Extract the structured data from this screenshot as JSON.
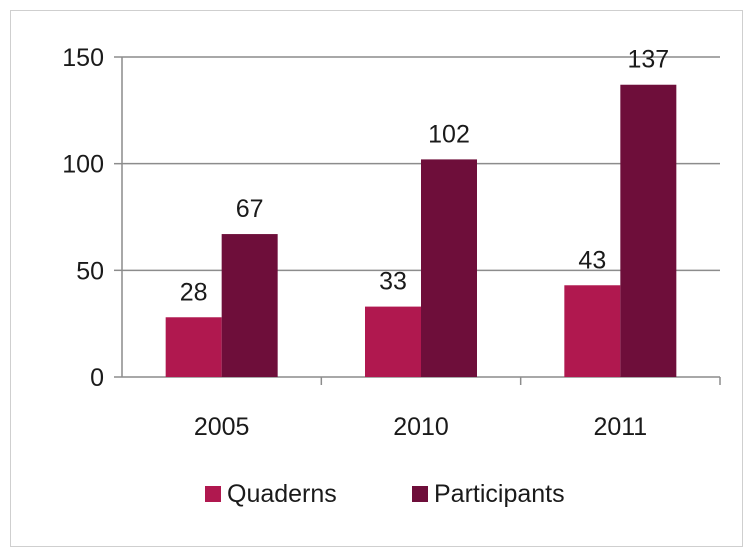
{
  "chart_data": {
    "type": "bar",
    "categories": [
      "2005",
      "2010",
      "2011"
    ],
    "series": [
      {
        "name": "Quaderns",
        "values": [
          28,
          33,
          43
        ],
        "color": "#b0184f"
      },
      {
        "name": "Participants",
        "values": [
          67,
          102,
          137
        ],
        "color": "#6e0e3a"
      }
    ],
    "ylim": [
      0,
      150
    ],
    "yticks": [
      0,
      50,
      100,
      150
    ],
    "ytick_labels": [
      "0",
      "50",
      "100",
      "150"
    ],
    "grid": true,
    "legend_position": "bottom",
    "data_labels": true
  }
}
